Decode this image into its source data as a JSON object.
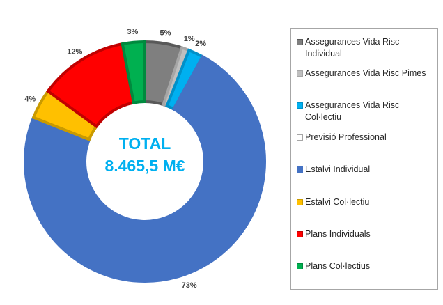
{
  "center_text": {
    "line1": "TOTAL",
    "line2": "8.465,5 M€"
  },
  "chart_data": {
    "type": "pie",
    "variant": "doughnut",
    "legend_position": "right",
    "categories": [
      "Assegurances Vida Risc Individual",
      "Assegurances Vida Risc Pimes",
      "Assegurances Vida Risc Col·lectiu",
      "Previsió Professional",
      "Estalvi Individual",
      "Estalvi Col·lectiu",
      "Plans Individuals",
      "Plans Col·lectius"
    ],
    "values": [
      5,
      1,
      2,
      0,
      73,
      4,
      12,
      3
    ],
    "data_labels": [
      "5%",
      "1%",
      "2%",
      "",
      "73%",
      "4%",
      "12%",
      "3%"
    ],
    "colors": [
      "#7f7f7f",
      "#bfbfbf",
      "#00b0f0",
      "#ffffff",
      "#4472c4",
      "#ffc000",
      "#ff0000",
      "#00b050"
    ],
    "edge_colors": [
      "#595959",
      "#a6a6a6",
      "#0090c8",
      "#a6a6a6",
      "#4472c4",
      "#c99a00",
      "#c00000",
      "#008a3e"
    ]
  }
}
